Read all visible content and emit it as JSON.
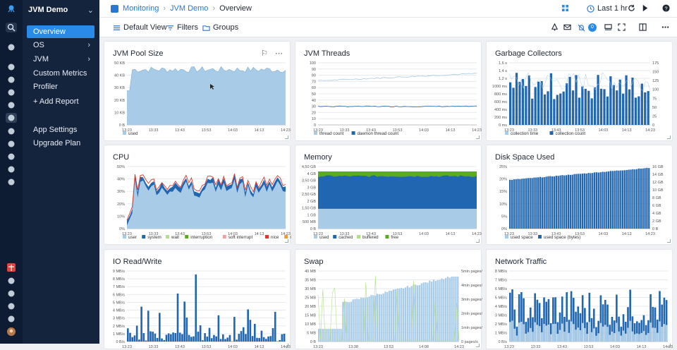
{
  "app": {
    "name": "JVM Demo"
  },
  "rail_icons": [
    "sematext-logo-icon",
    "search-icon",
    "rocket-icon",
    "binoculars-icon",
    "grid-icon",
    "alert-icon",
    "logs-icon",
    "monitoring-icon",
    "report-icon",
    "experience-icon",
    "bot-icon",
    "flag-icon",
    "integrations-icon",
    "gift-icon",
    "announcement-icon",
    "help-icon",
    "team-icon",
    "settings-icon",
    "user-avatar-icon"
  ],
  "sidebar": {
    "items": [
      {
        "label": "Overview",
        "selected": true,
        "arrow": false
      },
      {
        "label": "OS",
        "selected": false,
        "arrow": true
      },
      {
        "label": "JVM",
        "selected": false,
        "arrow": true
      },
      {
        "label": "Custom Metrics",
        "selected": false,
        "arrow": false
      },
      {
        "label": "Profiler",
        "selected": false,
        "arrow": false
      }
    ],
    "add_report": "+ Add Report",
    "bottom_items": [
      {
        "label": "App Settings"
      },
      {
        "label": "Upgrade Plan"
      }
    ]
  },
  "breadcrumb": {
    "root": "Monitoring",
    "app": "JVM Demo",
    "current": "Overview"
  },
  "header": {
    "time_range": "Last 1 hr",
    "notification_count": "0"
  },
  "toolbar": {
    "view": "Default View",
    "filters": "Filters",
    "groups": "Groups"
  },
  "colors": {
    "light_blue": "#a8cbe8",
    "dark_blue": "#2166b0",
    "green": "#5bab1e",
    "red": "#d83a2e",
    "pink": "#f1a1a1",
    "light_green": "#b2df8a",
    "orange": "#f59b2c",
    "accent": "#2a8ae8"
  },
  "panels": [
    {
      "title": "JVM Pool Size",
      "legend": [
        {
          "label": "used",
          "color": "#a8cbe8"
        }
      ],
      "yticks": [
        "0 B",
        "10 KB",
        "20 KB",
        "30 KB",
        "40 KB",
        "50 KB"
      ],
      "xticks": [
        "13:23",
        "13:33",
        "13:43",
        "13:53",
        "14:03",
        "14:13",
        "14:23"
      ]
    },
    {
      "title": "JVM Threads",
      "legend": [
        {
          "label": "thread count",
          "color": "#a8cbe8"
        },
        {
          "label": "daemon thread count",
          "color": "#2166b0"
        }
      ],
      "yticks": [
        "0",
        "10",
        "20",
        "30",
        "40",
        "50",
        "60",
        "70",
        "80",
        "90",
        "100"
      ],
      "xticks": [
        "13:23",
        "13:33",
        "13:43",
        "13:53",
        "14:03",
        "14:13",
        "14:23"
      ]
    },
    {
      "title": "Garbage Collectors",
      "legend": [
        {
          "label": "collection time",
          "color": "#a8cbe8"
        },
        {
          "label": "collection count",
          "color": "#2166b0"
        }
      ],
      "yticks": [
        "0 ms",
        "200 ms",
        "400 ms",
        "600 ms",
        "800 ms",
        "1000 ms",
        "1,2 s",
        "1,4 s",
        "1,6 s"
      ],
      "yticks2": [
        "0",
        "25",
        "50",
        "75",
        "100",
        "125",
        "150",
        "175"
      ],
      "xticks": [
        "13:23",
        "13:33",
        "13:43",
        "13:53",
        "14:03",
        "14:13",
        "14:23"
      ]
    },
    {
      "title": "CPU",
      "legend": [
        {
          "label": "user",
          "color": "#a8cbe8"
        },
        {
          "label": "system",
          "color": "#2166b0"
        },
        {
          "label": "wait",
          "color": "#b2df8a"
        },
        {
          "label": "interruption",
          "color": "#5bab1e"
        },
        {
          "label": "soft interrupt",
          "color": "#f1a1a1"
        },
        {
          "label": "nice",
          "color": "#d83a2e"
        },
        {
          "label": "steal",
          "color": "#f59b2c"
        }
      ],
      "yticks": [
        "0%",
        "10%",
        "20%",
        "30%",
        "40%",
        "50%"
      ],
      "xticks": [
        "13:23",
        "13:33",
        "13:43",
        "13:53",
        "14:03",
        "14:13",
        "14:23"
      ]
    },
    {
      "title": "Memory",
      "legend": [
        {
          "label": "used",
          "color": "#a8cbe8"
        },
        {
          "label": "cached",
          "color": "#2166b0"
        },
        {
          "label": "buffered",
          "color": "#b2df8a"
        },
        {
          "label": "free",
          "color": "#5bab1e"
        }
      ],
      "yticks": [
        "0 B",
        "500 MB",
        "1 GB",
        "1,50 GB",
        "2 GB",
        "2,50 GB",
        "3 GB",
        "3,50 GB",
        "4 GB",
        "4,50 GB"
      ],
      "xticks": [
        "13:23",
        "13:33",
        "13:43",
        "13:53",
        "14:03",
        "14:13",
        "14:23"
      ]
    },
    {
      "title": "Disk Space Used",
      "legend": [
        {
          "label": "used space",
          "color": "#a8cbe8"
        },
        {
          "label": "used space (bytes)",
          "color": "#2166b0"
        }
      ],
      "yticks": [
        "0%",
        "5%",
        "10%",
        "15%",
        "20%",
        "25%"
      ],
      "yticks2": [
        "0 B",
        "2 GB",
        "4 GB",
        "6 GB",
        "8 GB",
        "10 GB",
        "12 GB",
        "14 GB",
        "16 GB"
      ],
      "xticks": [
        "13:23",
        "13:33",
        "13:43",
        "13:53",
        "14:03",
        "14:13",
        "14:23"
      ]
    },
    {
      "title": "IO Read/Write",
      "legend": [],
      "yticks": [
        "0 B/s",
        "1 MB/s",
        "2 MB/s",
        "3 MB/s",
        "4 MB/s",
        "5 MB/s",
        "6 MB/s",
        "7 MB/s",
        "8 MB/s",
        "9 MB/s"
      ],
      "xticks": [
        "13:23",
        "13:33",
        "13:43",
        "13:53",
        "14:03",
        "14:13",
        "14:23"
      ]
    },
    {
      "title": "Swap",
      "legend": [],
      "yticks": [
        "0 B",
        "5 MB",
        "10 MB",
        "15 MB",
        "20 MB",
        "25 MB",
        "30 MB",
        "35 MB",
        "40 MB"
      ],
      "yticks2": [
        "0 pages/s",
        "1mln pages/s",
        "2mln pages/s",
        "3mln pages/s",
        "4mln pages/s",
        "5mln pages/s"
      ],
      "xticks": [
        "13:23",
        "13:38",
        "13:53",
        "14:08",
        "14:23"
      ]
    },
    {
      "title": "Network Traffic",
      "legend": [],
      "yticks": [
        "0 B/s",
        "1 MB/s",
        "2 MB/s",
        "3 MB/s",
        "4 MB/s",
        "5 MB/s",
        "6 MB/s",
        "7 MB/s",
        "8 MB/s"
      ],
      "xticks": [
        "13:23",
        "13:33",
        "13:43",
        "13:53",
        "14:03",
        "14:13",
        "14:23"
      ]
    }
  ]
}
